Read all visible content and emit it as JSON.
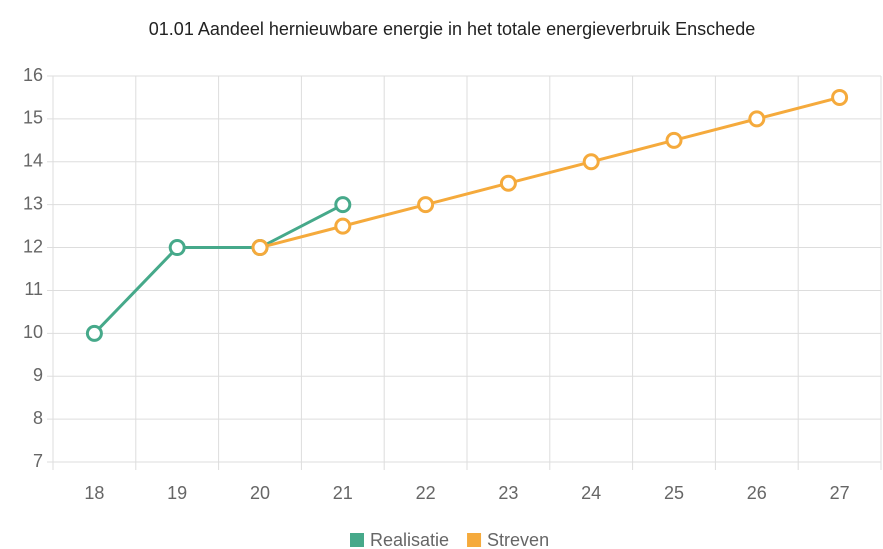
{
  "chart_data": {
    "type": "line",
    "title": "01.01 Aandeel hernieuwbare energie in het totale energieverbruik Enschede",
    "categories": [
      "18",
      "19",
      "20",
      "21",
      "22",
      "23",
      "24",
      "25",
      "26",
      "27"
    ],
    "series": [
      {
        "name": "Realisatie",
        "color": "#46a98a",
        "values": [
          10,
          12,
          12,
          13,
          null,
          null,
          null,
          null,
          null,
          null
        ]
      },
      {
        "name": "Streven",
        "color": "#f5aa3c",
        "values": [
          null,
          null,
          12,
          12.5,
          13,
          13.5,
          14,
          14.5,
          15,
          15.5
        ]
      }
    ],
    "ylim": [
      7,
      16
    ],
    "yticks": [
      7,
      8,
      9,
      10,
      11,
      12,
      13,
      14,
      15,
      16
    ],
    "grid": true,
    "legend": "bottom"
  }
}
